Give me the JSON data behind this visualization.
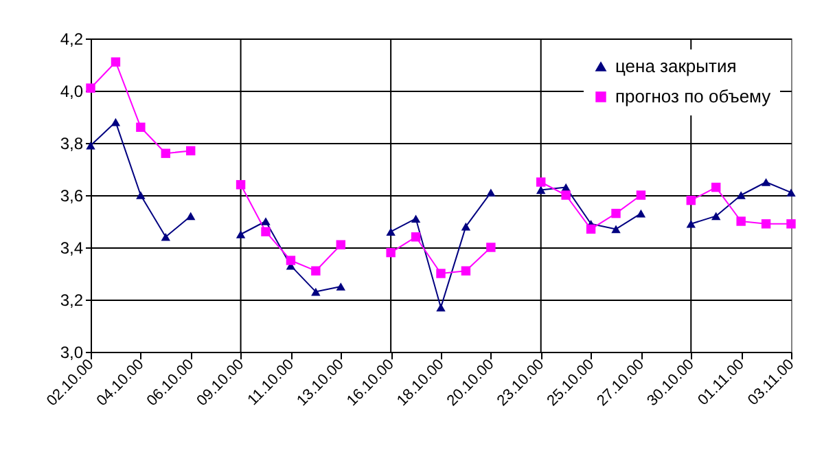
{
  "chart_data": {
    "type": "line",
    "categories": [
      "02.10.00",
      null,
      "04.10.00",
      null,
      "06.10.00",
      null,
      "09.10.00",
      null,
      "11.10.00",
      null,
      "13.10.00",
      null,
      "16.10.00",
      null,
      "18.10.00",
      null,
      "20.10.00",
      null,
      "23.10.00",
      null,
      "25.10.00",
      null,
      "27.10.00",
      null,
      "30.10.00",
      null,
      "01.11.00",
      null,
      "03.11.00"
    ],
    "series": [
      {
        "name": "цена закрытия",
        "color": "#000080",
        "marker": "triangle",
        "values": [
          3.79,
          3.88,
          3.6,
          3.44,
          3.52,
          null,
          3.45,
          3.5,
          3.33,
          3.23,
          3.25,
          null,
          3.46,
          3.51,
          3.17,
          3.48,
          3.61,
          null,
          3.62,
          3.63,
          3.49,
          3.47,
          3.53,
          null,
          3.49,
          3.52,
          3.6,
          3.65,
          3.61
        ]
      },
      {
        "name": "прогноз по объему",
        "color": "#ff00ff",
        "marker": "square",
        "values": [
          4.01,
          4.11,
          3.86,
          3.76,
          3.77,
          null,
          3.64,
          3.46,
          3.35,
          3.31,
          3.41,
          null,
          3.38,
          3.44,
          3.3,
          3.31,
          3.4,
          null,
          3.65,
          3.6,
          3.47,
          3.53,
          3.6,
          null,
          3.58,
          3.63,
          3.5,
          3.49,
          3.49
        ]
      }
    ],
    "ylim": [
      3.0,
      4.2
    ],
    "yticks": [
      {
        "value": 3.0,
        "label": "3,0"
      },
      {
        "value": 3.2,
        "label": "3,2"
      },
      {
        "value": 3.4,
        "label": "3,4"
      },
      {
        "value": 3.6,
        "label": "3,6"
      },
      {
        "value": 3.8,
        "label": "3,8"
      },
      {
        "value": 4.0,
        "label": "4,0"
      },
      {
        "value": 4.2,
        "label": "4,2"
      }
    ],
    "grid": true,
    "legend": "top right",
    "line_style": "solid"
  }
}
